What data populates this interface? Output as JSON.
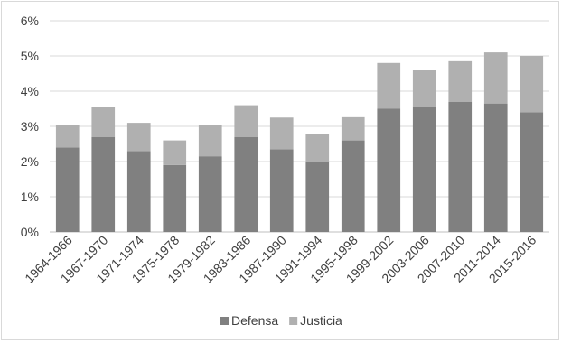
{
  "chart_data": {
    "type": "bar",
    "stacked": true,
    "categories": [
      "1964-1966",
      "1967-1970",
      "1971-1974",
      "1975-1978",
      "1979-1982",
      "1983-1986",
      "1987-1990",
      "1991-1994",
      "1995-1998",
      "1999-2002",
      "2003-2006",
      "2007-2010",
      "2011-2014",
      "2015-2016"
    ],
    "series": [
      {
        "name": "Defensa",
        "color": "#808080",
        "values": [
          2.4,
          2.7,
          2.3,
          1.9,
          2.15,
          2.7,
          2.35,
          2.0,
          2.6,
          3.5,
          3.55,
          3.7,
          3.65,
          3.4
        ]
      },
      {
        "name": "Justicia",
        "color": "#b0b0b0",
        "values": [
          0.65,
          0.85,
          0.8,
          0.7,
          0.9,
          0.9,
          0.9,
          0.78,
          0.66,
          1.3,
          1.05,
          1.15,
          1.45,
          1.6
        ]
      }
    ],
    "yticks": [
      "0%",
      "1%",
      "2%",
      "3%",
      "4%",
      "5%",
      "6%"
    ],
    "ylim": [
      0,
      6
    ],
    "grid": true,
    "legend_position": "bottom"
  }
}
